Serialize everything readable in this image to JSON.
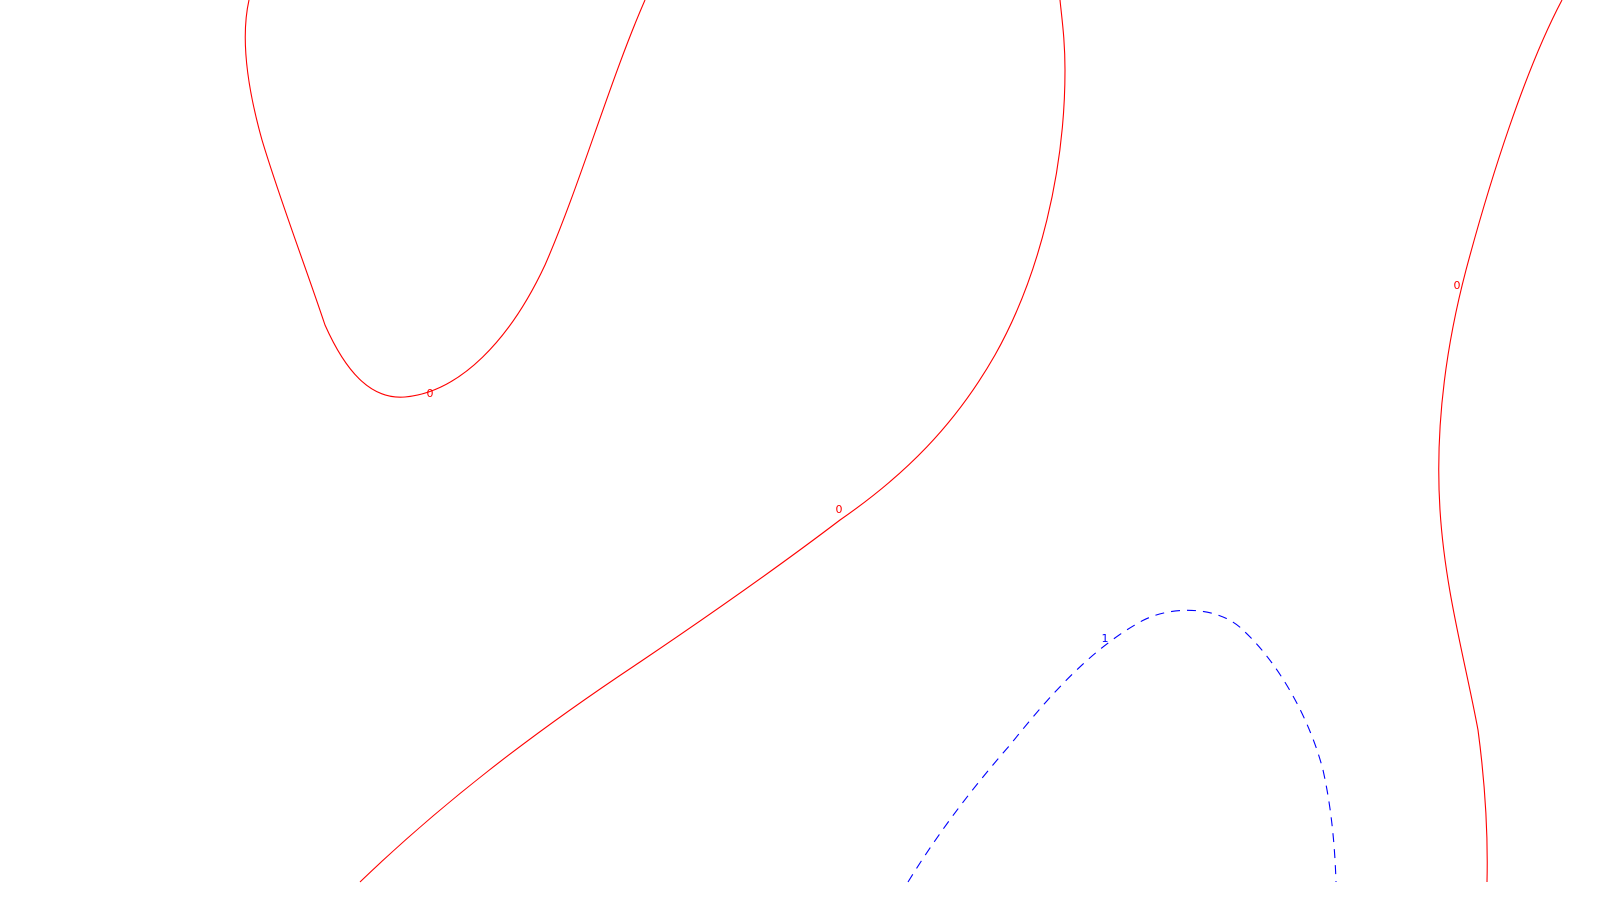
{
  "chart_data": {
    "type": "contour",
    "grid": false,
    "colors": {
      "level_0": "#ff0000",
      "level_1": "#0000ff"
    },
    "series": [
      {
        "level": 0,
        "label": "0",
        "line_style": "solid",
        "color": "#ff0000",
        "segments": 3
      },
      {
        "level": 1,
        "label": "1",
        "line_style": "dashed",
        "color": "#0000ff",
        "segments": 1
      }
    ],
    "contour_labels": [
      {
        "text": "0",
        "level": 0
      },
      {
        "text": "0",
        "level": 0
      },
      {
        "text": "0",
        "level": 0
      },
      {
        "text": "1",
        "level": 1
      }
    ]
  }
}
